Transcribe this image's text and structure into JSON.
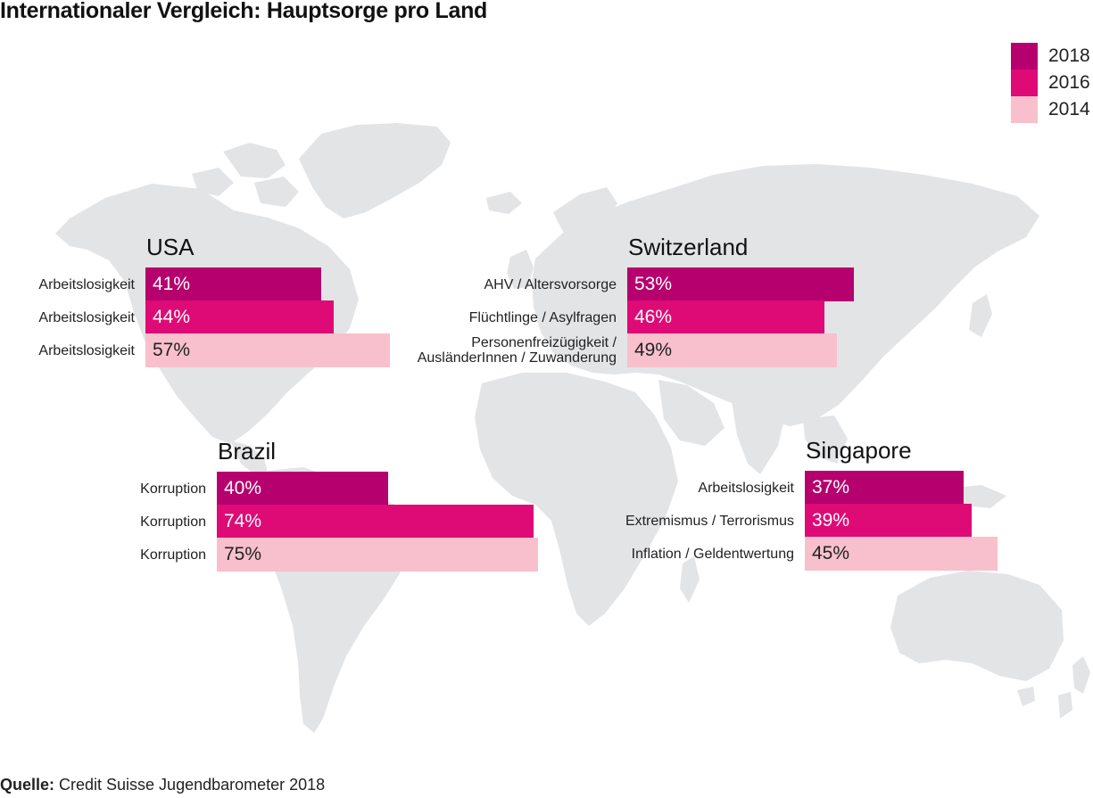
{
  "title": "Internationaler Vergleich: Hauptsorge pro Land",
  "source": {
    "prefix": "Quelle:",
    "text": " Credit Suisse Jugendbarometer 2018"
  },
  "colors": {
    "2018": "#b5006e",
    "2016": "#de0b76",
    "2014": "#f8c0cc",
    "map": "#e3e4e6"
  },
  "chart_data": {
    "type": "bar",
    "orientation": "horizontal",
    "unit": "%",
    "xlim": [
      0,
      100
    ],
    "grid": false,
    "legend_placement": "top-right",
    "years": [
      "2018",
      "2016",
      "2014"
    ],
    "panels": [
      {
        "country": "USA",
        "rows": [
          {
            "year": "2018",
            "label": "Arbeitslosigkeit",
            "value": 41,
            "display": "41%"
          },
          {
            "year": "2016",
            "label": "Arbeitslosigkeit",
            "value": 44,
            "display": "44%"
          },
          {
            "year": "2014",
            "label": "Arbeitslosigkeit",
            "value": 57,
            "display": "57%"
          }
        ]
      },
      {
        "country": "Switzerland",
        "rows": [
          {
            "year": "2018",
            "label": "AHV / Altersvorsorge",
            "value": 53,
            "display": "53%"
          },
          {
            "year": "2016",
            "label": "Flüchtlinge / Asylfragen",
            "value": 46,
            "display": "46%"
          },
          {
            "year": "2014",
            "label": "Personenfreizügigkeit /\nAusländerInnen / Zuwanderung",
            "value": 49,
            "display": "49%"
          }
        ]
      },
      {
        "country": "Brazil",
        "rows": [
          {
            "year": "2018",
            "label": "Korruption",
            "value": 40,
            "display": "40%"
          },
          {
            "year": "2016",
            "label": "Korruption",
            "value": 74,
            "display": "74%"
          },
          {
            "year": "2014",
            "label": "Korruption",
            "value": 75,
            "display": "75%"
          }
        ]
      },
      {
        "country": "Singapore",
        "rows": [
          {
            "year": "2018",
            "label": "Arbeitslosigkeit",
            "value": 37,
            "display": "37%"
          },
          {
            "year": "2016",
            "label": "Extremismus / Terrorismus",
            "value": 39,
            "display": "39%"
          },
          {
            "year": "2014",
            "label": "Inflation / Geldentwertung",
            "value": 45,
            "display": "45%"
          }
        ]
      }
    ]
  }
}
